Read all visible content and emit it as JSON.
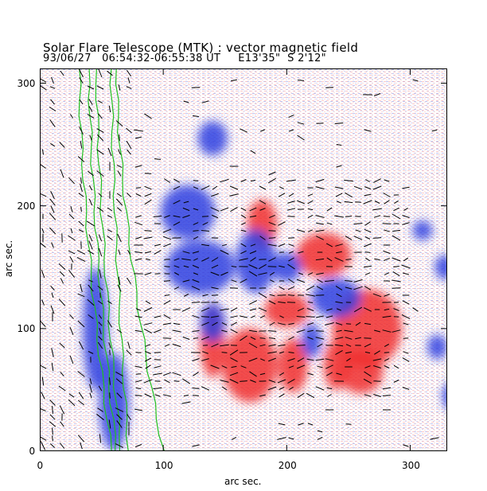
{
  "figure": {
    "title": "Solar Flare Telescope (MTK) : vector magnetic field",
    "subtitle": "93/06/27   06:54:32-06:55:38 UT     E13'35\"  S 2'12\"",
    "xlabel": "arc sec.",
    "ylabel": "arc sec."
  },
  "axes": {
    "x_ticks": [
      "0",
      "100",
      "200",
      "300"
    ],
    "y_ticks": [
      "0",
      "100",
      "200",
      "300"
    ],
    "x_range": [
      0,
      330
    ],
    "y_range": [
      0,
      312
    ]
  },
  "colors": {
    "positive": "#f03030",
    "negative": "#3040e0",
    "limb_contour": "#20c020",
    "vector": "#000000",
    "background": "#ffffff"
  },
  "map": {
    "positive_regions": [
      {
        "x": 180,
        "y": 185,
        "rx": 12,
        "ry": 20
      },
      {
        "x": 230,
        "y": 160,
        "rx": 22,
        "ry": 18
      },
      {
        "x": 265,
        "y": 100,
        "rx": 28,
        "ry": 32
      },
      {
        "x": 260,
        "y": 65,
        "rx": 18,
        "ry": 18
      },
      {
        "x": 200,
        "y": 115,
        "rx": 18,
        "ry": 14
      },
      {
        "x": 170,
        "y": 70,
        "rx": 22,
        "ry": 30
      },
      {
        "x": 205,
        "y": 70,
        "rx": 12,
        "ry": 22
      },
      {
        "x": 140,
        "y": 90,
        "rx": 10,
        "ry": 30
      },
      {
        "x": 240,
        "y": 70,
        "rx": 10,
        "ry": 20
      }
    ],
    "negative_regions": [
      {
        "x": 175,
        "y": 155,
        "rx": 16,
        "ry": 26
      },
      {
        "x": 200,
        "y": 150,
        "rx": 12,
        "ry": 12
      },
      {
        "x": 240,
        "y": 125,
        "rx": 20,
        "ry": 16
      },
      {
        "x": 220,
        "y": 90,
        "rx": 8,
        "ry": 14
      },
      {
        "x": 120,
        "y": 195,
        "rx": 22,
        "ry": 22
      },
      {
        "x": 130,
        "y": 150,
        "rx": 28,
        "ry": 22
      },
      {
        "x": 140,
        "y": 105,
        "rx": 10,
        "ry": 16
      },
      {
        "x": 140,
        "y": 255,
        "rx": 12,
        "ry": 14
      },
      {
        "x": 310,
        "y": 180,
        "rx": 8,
        "ry": 8
      },
      {
        "x": 328,
        "y": 150,
        "rx": 8,
        "ry": 10
      },
      {
        "x": 322,
        "y": 85,
        "rx": 8,
        "ry": 10
      },
      {
        "x": 340,
        "y": 45,
        "rx": 14,
        "ry": 14
      },
      {
        "x": 60,
        "y": 40,
        "rx": 12,
        "ry": 40
      },
      {
        "x": 45,
        "y": 100,
        "rx": 10,
        "ry": 50
      }
    ],
    "limb_contours": [
      {
        "top_x": 32,
        "bottom_x": 58
      },
      {
        "top_x": 40,
        "bottom_x": 62
      },
      {
        "top_x": 46,
        "bottom_x": 66
      },
      {
        "top_x": 58,
        "bottom_x": 72
      },
      {
        "top_x": 62,
        "bottom_x": 100
      }
    ]
  }
}
